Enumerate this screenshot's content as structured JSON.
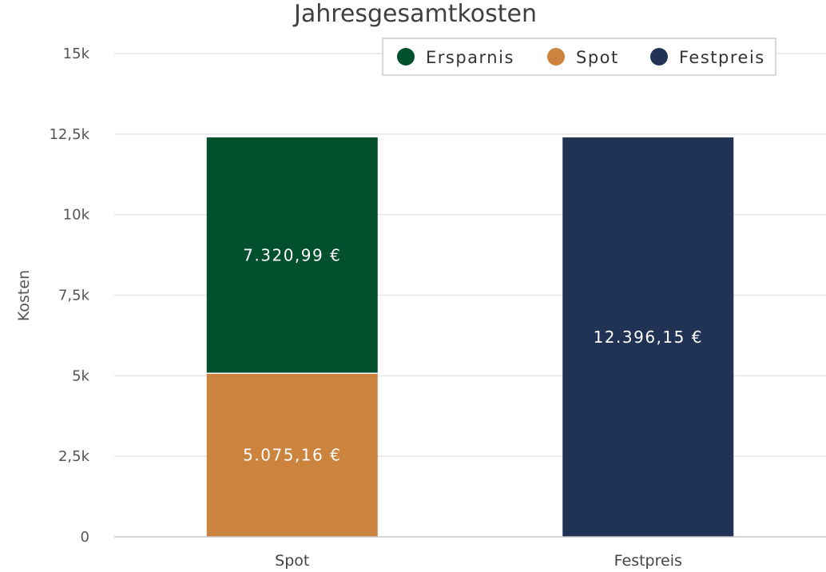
{
  "chart_data": {
    "type": "bar",
    "stacked": true,
    "title": "Jahresgesamtkosten",
    "ylabel": "Kosten",
    "categories": [
      "Spot",
      "Festpreis"
    ],
    "ylim": [
      0,
      15000
    ],
    "yticks": [
      0,
      2500,
      5000,
      7500,
      10000,
      12500,
      15000
    ],
    "ytick_labels": [
      "0",
      "2,5k",
      "5k",
      "7,5k",
      "10k",
      "12,5k",
      "15k"
    ],
    "series": [
      {
        "name": "Spot",
        "color": "#cc833d",
        "values": [
          5075.16,
          null
        ],
        "labels": [
          "5.075,16 €",
          ""
        ]
      },
      {
        "name": "Ersparnis",
        "color": "#004f2d",
        "values": [
          7320.99,
          null
        ],
        "labels": [
          "7.320,99 €",
          ""
        ]
      },
      {
        "name": "Festpreis",
        "color": "#203354",
        "values": [
          null,
          12396.15
        ],
        "labels": [
          "",
          "12.396,15 €"
        ]
      }
    ],
    "legend": {
      "placement": "top-right",
      "order": [
        "Ersparnis",
        "Spot",
        "Festpreis"
      ]
    },
    "grid": true
  }
}
